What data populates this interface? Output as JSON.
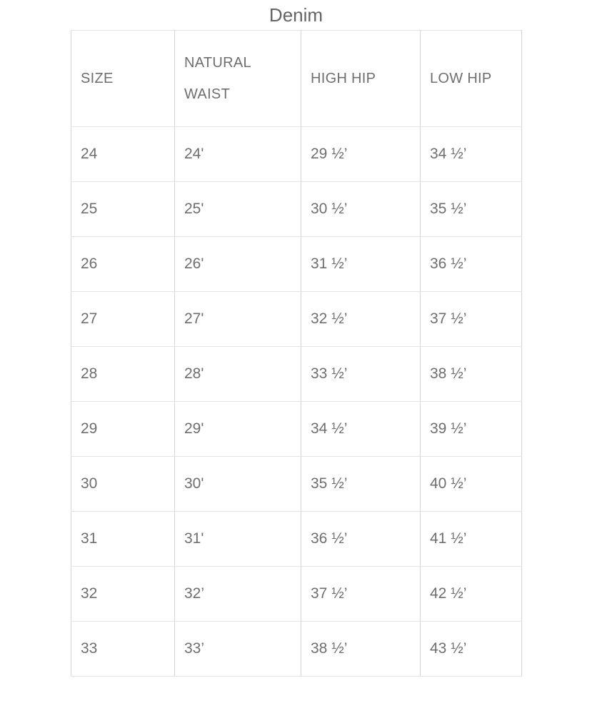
{
  "page": {
    "title": "Denim"
  },
  "table": {
    "columns": [
      {
        "key": "size",
        "label": "SIZE"
      },
      {
        "key": "natural-waist",
        "label": "NATURAL WAIST"
      },
      {
        "key": "high-hip",
        "label": "HIGH HIP"
      },
      {
        "key": "low-hip",
        "label": "LOW HIP"
      }
    ],
    "rows": [
      [
        "24",
        "24'",
        "29 ½’",
        "34 ½’"
      ],
      [
        "25",
        "25'",
        "30 ½’",
        "35 ½’"
      ],
      [
        "26",
        "26'",
        "31 ½’",
        "36 ½’"
      ],
      [
        "27",
        "27'",
        "32 ½’",
        "37 ½’"
      ],
      [
        "28",
        "28'",
        "33 ½’",
        "38 ½’"
      ],
      [
        "29",
        "29'",
        "34 ½’",
        "39 ½’"
      ],
      [
        "30",
        "30'",
        "35 ½’",
        "40 ½’"
      ],
      [
        "31",
        "31'",
        "36 ½’",
        "41 ½’"
      ],
      [
        "32",
        "32’",
        "37 ½’",
        "42 ½’"
      ],
      [
        "33",
        "33’",
        "38 ½’",
        "43 ½’"
      ]
    ]
  },
  "chart_data": {
    "type": "table",
    "title": "Denim",
    "columns": [
      "SIZE",
      "NATURAL WAIST",
      "HIGH HIP",
      "LOW HIP"
    ],
    "rows": [
      [
        "24",
        "24'",
        "29 ½’",
        "34 ½’"
      ],
      [
        "25",
        "25'",
        "30 ½’",
        "35 ½’"
      ],
      [
        "26",
        "26'",
        "31 ½’",
        "36 ½’"
      ],
      [
        "27",
        "27'",
        "32 ½’",
        "37 ½’"
      ],
      [
        "28",
        "28'",
        "33 ½’",
        "38 ½’"
      ],
      [
        "29",
        "29'",
        "34 ½’",
        "39 ½’"
      ],
      [
        "30",
        "30'",
        "35 ½’",
        "40 ½’"
      ],
      [
        "31",
        "31'",
        "36 ½’",
        "41 ½’"
      ],
      [
        "32",
        "32’",
        "37 ½’",
        "42 ½’"
      ],
      [
        "33",
        "33’",
        "38 ½’",
        "43 ½’"
      ]
    ],
    "layout": {
      "title_position": "top-center",
      "header_row": true,
      "grid": true
    }
  },
  "colors": {
    "background": "#ffffff",
    "text": "#6e6e6e",
    "title_text": "#646464",
    "border_vertical": "#d5d5d5",
    "border_horizontal": "#e4e4e4"
  }
}
